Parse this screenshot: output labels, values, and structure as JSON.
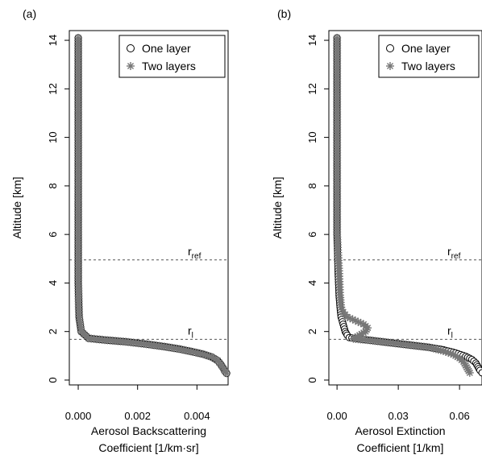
{
  "chart_data": [
    {
      "type": "scatter",
      "panel_label": "(a)",
      "title": "",
      "xlabel_line1": "Aerosol Backscattering",
      "xlabel_line2": "Coefficient [1/km·sr]",
      "ylabel": "Altitude [km]",
      "xlim": [
        -0.0003,
        0.00505
      ],
      "ylim": [
        -0.2,
        14.4
      ],
      "xticks": [
        0.0,
        0.002,
        0.004
      ],
      "xtick_labels": [
        "0.000",
        "0.002",
        "0.004"
      ],
      "yticks": [
        0,
        2,
        4,
        6,
        8,
        10,
        12,
        14
      ],
      "ytick_labels": [
        "0",
        "2",
        "4",
        "6",
        "8",
        "10",
        "12",
        "14"
      ],
      "legend_position": "top-right",
      "ref_lines": [
        {
          "label_main": "r",
          "label_sub": "ref",
          "y": 4.95
        },
        {
          "label_main": "r",
          "label_sub": "l",
          "y": 1.68
        }
      ],
      "series": [
        {
          "name": "One layer",
          "marker": "open-circle",
          "points": [
            [
              0.0,
              14.1
            ],
            [
              0.0,
              12.0
            ],
            [
              0.0,
              10.0
            ],
            [
              0.0,
              8.0
            ],
            [
              0.0,
              6.0
            ],
            [
              0.0,
              4.0
            ],
            [
              3e-05,
              2.6
            ],
            [
              0.0001,
              2.0
            ],
            [
              0.00035,
              1.72
            ],
            [
              0.0009,
              1.65
            ],
            [
              0.0016,
              1.58
            ],
            [
              0.0023,
              1.48
            ],
            [
              0.0029,
              1.38
            ],
            [
              0.0034,
              1.28
            ],
            [
              0.0038,
              1.18
            ],
            [
              0.0042,
              1.07
            ],
            [
              0.0045,
              0.95
            ],
            [
              0.0047,
              0.8
            ],
            [
              0.0048,
              0.65
            ],
            [
              0.00488,
              0.5
            ],
            [
              0.00495,
              0.35
            ],
            [
              0.005,
              0.28
            ]
          ]
        },
        {
          "name": "Two layers",
          "marker": "asterisk",
          "points": [
            [
              0.0,
              14.1
            ],
            [
              0.0,
              12.0
            ],
            [
              0.0,
              10.0
            ],
            [
              0.0,
              8.0
            ],
            [
              0.0,
              6.0
            ],
            [
              0.0,
              4.0
            ],
            [
              3e-05,
              2.6
            ],
            [
              0.0001,
              2.0
            ],
            [
              0.00035,
              1.72
            ],
            [
              0.0009,
              1.65
            ],
            [
              0.0016,
              1.58
            ],
            [
              0.0023,
              1.48
            ],
            [
              0.0029,
              1.38
            ],
            [
              0.0034,
              1.28
            ],
            [
              0.0038,
              1.18
            ],
            [
              0.0042,
              1.07
            ],
            [
              0.0045,
              0.95
            ],
            [
              0.0047,
              0.8
            ],
            [
              0.0048,
              0.65
            ],
            [
              0.00488,
              0.5
            ],
            [
              0.00495,
              0.35
            ],
            [
              0.005,
              0.28
            ]
          ]
        }
      ]
    },
    {
      "type": "scatter",
      "panel_label": "(b)",
      "title": "",
      "xlabel_line1": "Aerosol Extinction",
      "xlabel_line2": "Coefficient [1/km]",
      "ylabel": "Altitude [km]",
      "xlim": [
        -0.004,
        0.071
      ],
      "ylim": [
        -0.2,
        14.4
      ],
      "xticks": [
        0.0,
        0.03,
        0.06
      ],
      "xtick_labels": [
        "0.00",
        "0.03",
        "0.06"
      ],
      "yticks": [
        0,
        2,
        4,
        6,
        8,
        10,
        12,
        14
      ],
      "ytick_labels": [
        "0",
        "2",
        "4",
        "6",
        "8",
        "10",
        "12",
        "14"
      ],
      "legend_position": "top-right",
      "ref_lines": [
        {
          "label_main": "r",
          "label_sub": "ref",
          "y": 4.95
        },
        {
          "label_main": "r",
          "label_sub": "l",
          "y": 1.68
        }
      ],
      "series": [
        {
          "name": "One layer",
          "marker": "open-circle",
          "points": [
            [
              0.0,
              14.1
            ],
            [
              0.0,
              12.0
            ],
            [
              0.0,
              10.0
            ],
            [
              0.0,
              8.0
            ],
            [
              0.0,
              6.0
            ],
            [
              0.0005,
              4.5
            ],
            [
              0.001,
              3.5
            ],
            [
              0.0015,
              3.0
            ],
            [
              0.002,
              2.6
            ],
            [
              0.003,
              2.3
            ],
            [
              0.004,
              2.0
            ],
            [
              0.005,
              1.85
            ],
            [
              0.006,
              1.75
            ],
            [
              0.015,
              1.65
            ],
            [
              0.025,
              1.55
            ],
            [
              0.035,
              1.45
            ],
            [
              0.045,
              1.35
            ],
            [
              0.052,
              1.25
            ],
            [
              0.058,
              1.12
            ],
            [
              0.063,
              0.98
            ],
            [
              0.066,
              0.85
            ],
            [
              0.068,
              0.7
            ],
            [
              0.069,
              0.55
            ],
            [
              0.07,
              0.4
            ],
            [
              0.071,
              0.3
            ]
          ]
        },
        {
          "name": "Two layers",
          "marker": "asterisk",
          "points": [
            [
              0.0,
              14.1
            ],
            [
              0.0,
              12.0
            ],
            [
              0.0,
              10.0
            ],
            [
              0.0,
              8.0
            ],
            [
              0.0,
              6.0
            ],
            [
              0.001,
              4.5
            ],
            [
              0.0015,
              3.5
            ],
            [
              0.002,
              3.0
            ],
            [
              0.003,
              2.8
            ],
            [
              0.005,
              2.6
            ],
            [
              0.009,
              2.45
            ],
            [
              0.013,
              2.3
            ],
            [
              0.015,
              2.15
            ],
            [
              0.014,
              2.0
            ],
            [
              0.011,
              1.85
            ],
            [
              0.008,
              1.7
            ],
            [
              0.015,
              1.65
            ],
            [
              0.025,
              1.55
            ],
            [
              0.035,
              1.45
            ],
            [
              0.045,
              1.35
            ],
            [
              0.052,
              1.2
            ],
            [
              0.057,
              1.05
            ],
            [
              0.06,
              0.9
            ],
            [
              0.062,
              0.75
            ],
            [
              0.063,
              0.6
            ],
            [
              0.064,
              0.45
            ],
            [
              0.065,
              0.3
            ]
          ]
        }
      ]
    }
  ]
}
